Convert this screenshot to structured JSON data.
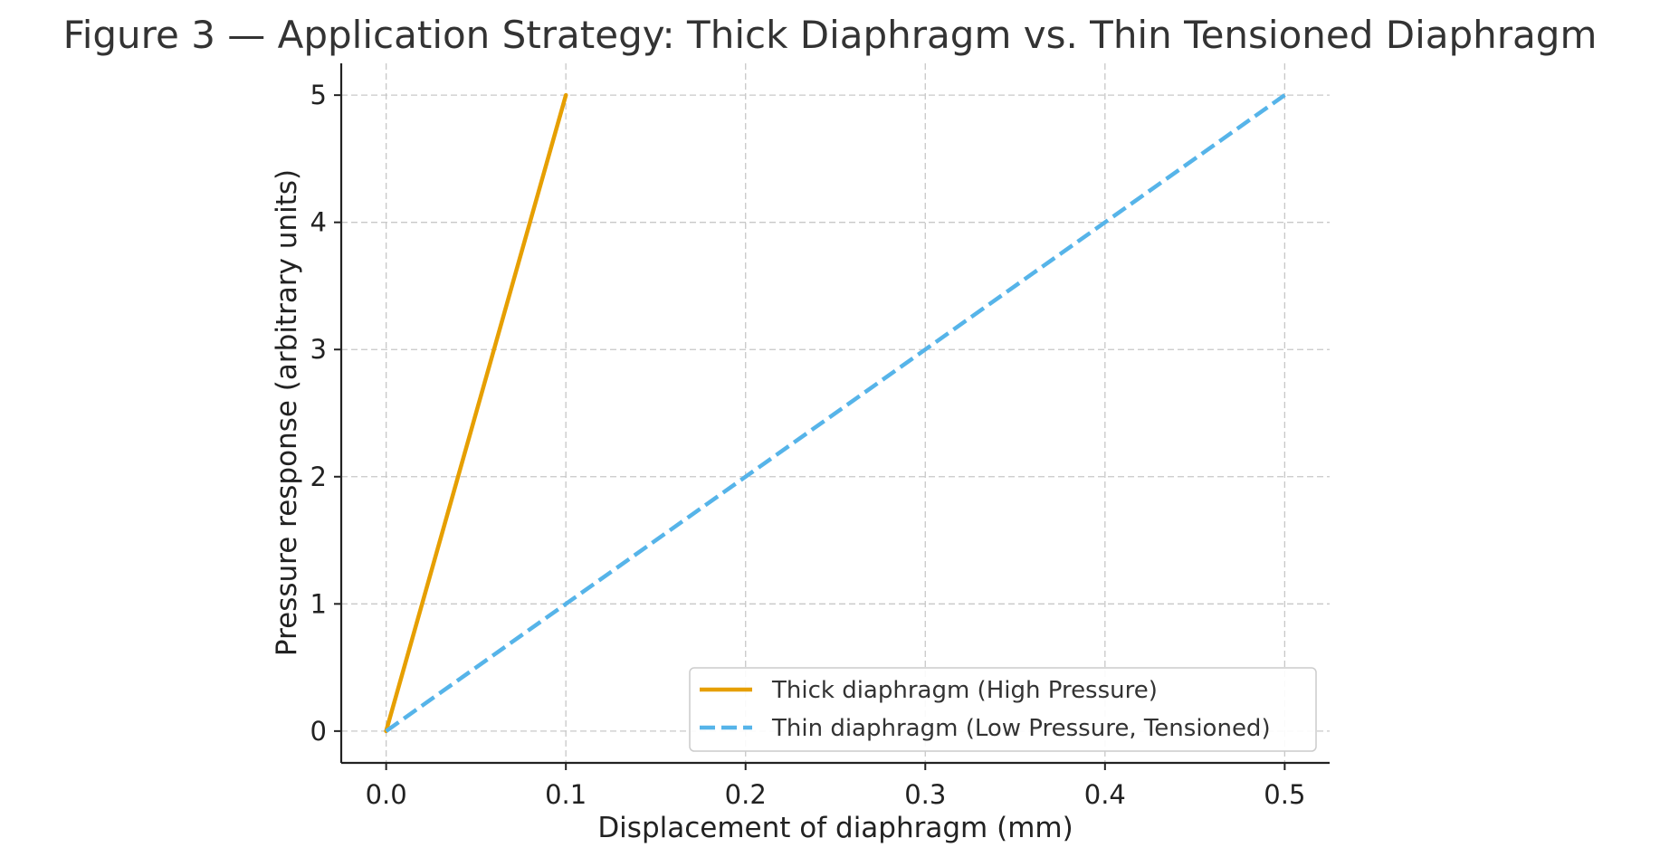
{
  "chart_data": {
    "type": "line",
    "title": "Figure 3 — Application Strategy: Thick Diaphragm vs. Thin Tensioned Diaphragm",
    "xlabel": "Displacement of diaphragm (mm)",
    "ylabel": "Pressure response (arbitrary units)",
    "xlim": [
      -0.025,
      0.525
    ],
    "ylim": [
      -0.25,
      5.25
    ],
    "xticks": [
      0.0,
      0.1,
      0.2,
      0.3,
      0.4,
      0.5
    ],
    "xtick_labels": [
      "0.0",
      "0.1",
      "0.2",
      "0.3",
      "0.4",
      "0.5"
    ],
    "yticks": [
      0,
      1,
      2,
      3,
      4,
      5
    ],
    "ytick_labels": [
      "0",
      "1",
      "2",
      "3",
      "4",
      "5"
    ],
    "grid": true,
    "legend_position": "bottom-right",
    "series": [
      {
        "name": "Thick diaphragm (High Pressure)",
        "color": "#E69F00",
        "style": "solid",
        "x": [
          0.0,
          0.1
        ],
        "y": [
          0,
          5
        ]
      },
      {
        "name": "Thin diaphragm (Low Pressure, Tensioned)",
        "color": "#56B4E9",
        "style": "dashed",
        "x": [
          0.0,
          0.5
        ],
        "y": [
          0,
          5
        ]
      }
    ]
  }
}
